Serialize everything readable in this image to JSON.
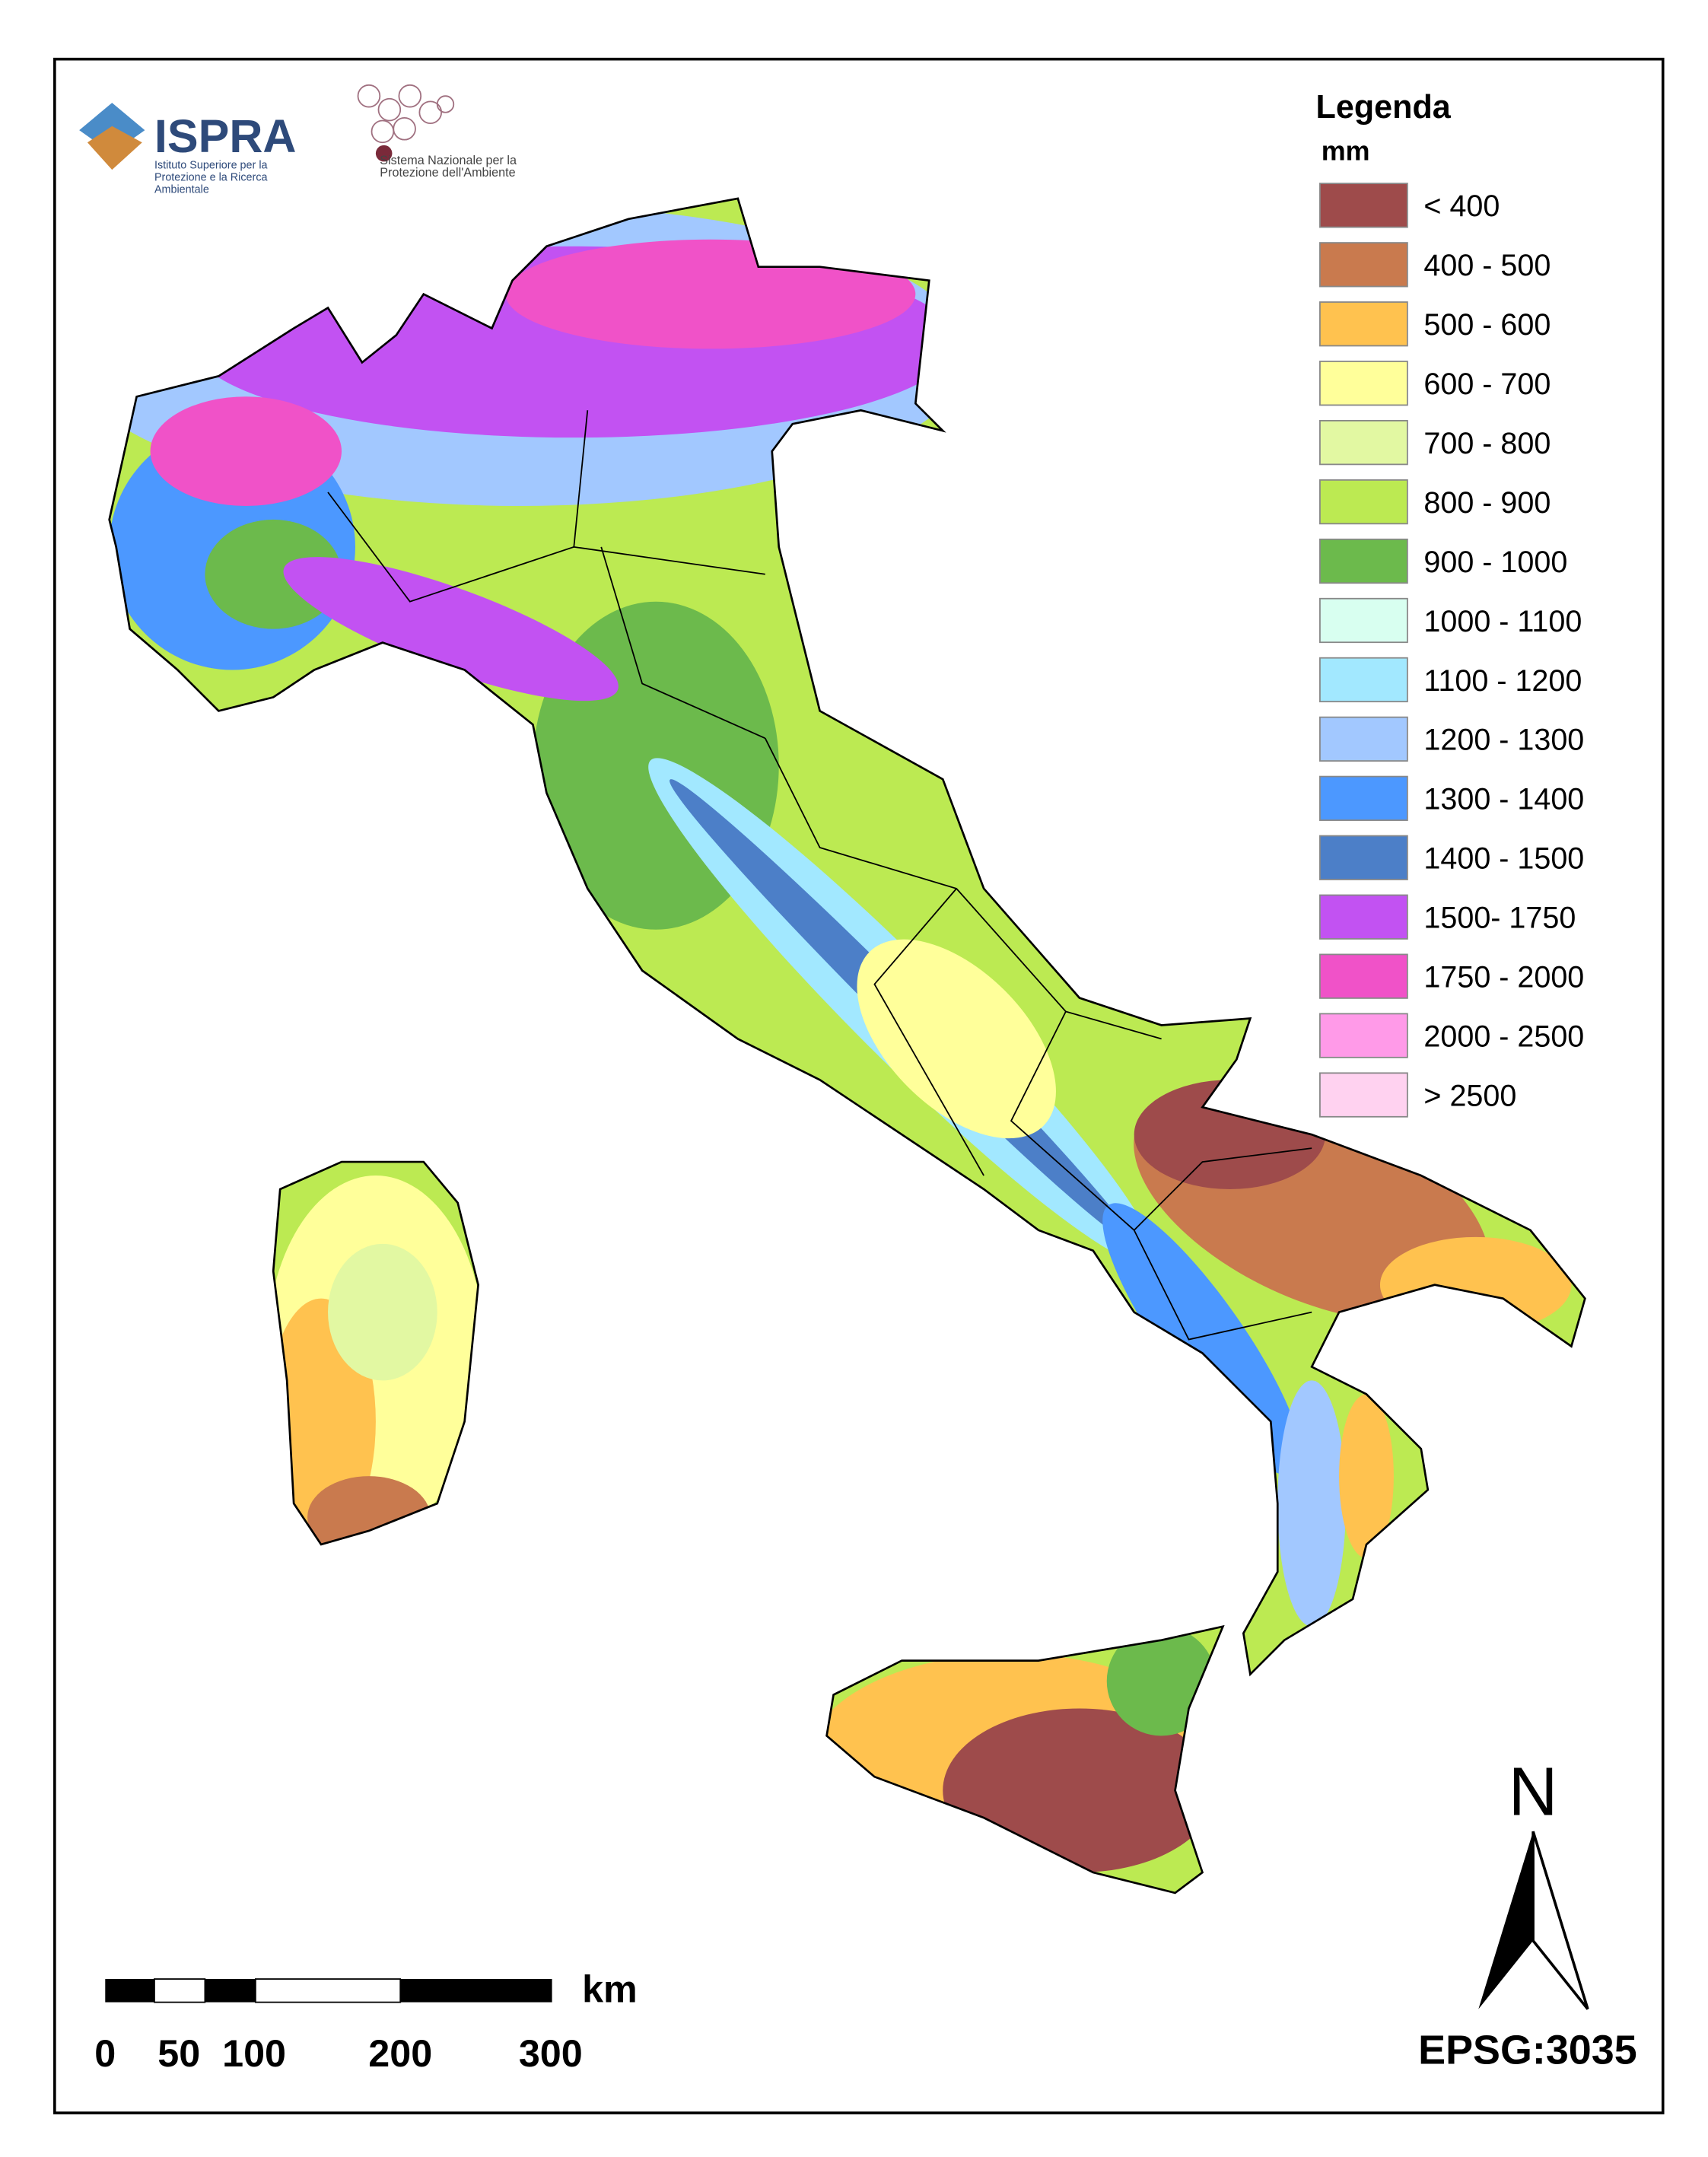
{
  "header": {
    "logo_title": "ISPRA",
    "logo_subtitle": "Istituto Superiore per la Protezione e la Ricerca Ambientale",
    "network": "Sistema Nazionale per la Protezione dell'Ambiente"
  },
  "legend": {
    "title": "Legenda",
    "unit": "mm",
    "items": [
      {
        "label": "< 400",
        "color": "#9e4b4b"
      },
      {
        "label": "400 - 500",
        "color": "#c97a4e"
      },
      {
        "label": "500 - 600",
        "color": "#ffc24f"
      },
      {
        "label": "600 - 700",
        "color": "#ffff9a"
      },
      {
        "label": "700 - 800",
        "color": "#e2f8a2"
      },
      {
        "label": "800 - 900",
        "color": "#bcea52"
      },
      {
        "label": "900 - 1000",
        "color": "#6cba4c"
      },
      {
        "label": "1000 - 1100",
        "color": "#d8fff0"
      },
      {
        "label": "1100 - 1200",
        "color": "#a2e8ff"
      },
      {
        "label": "1200 - 1300",
        "color": "#a2c8ff"
      },
      {
        "label": "1300 - 1400",
        "color": "#4c98ff"
      },
      {
        "label": "1400 - 1500",
        "color": "#4c7fc8"
      },
      {
        "label": "1500- 1750",
        "color": "#c252f2"
      },
      {
        "label": "1750 - 2000",
        "color": "#f052c8"
      },
      {
        "label": "2000 - 2500",
        "color": "#ff9ae8"
      },
      {
        "label": "> 2500",
        "color": "#ffd2f0"
      }
    ]
  },
  "scale_bar": {
    "unit": "km",
    "labels": [
      "0",
      "50",
      "100",
      "200",
      "300"
    ]
  },
  "north": "N",
  "crs": "EPSG:3035"
}
